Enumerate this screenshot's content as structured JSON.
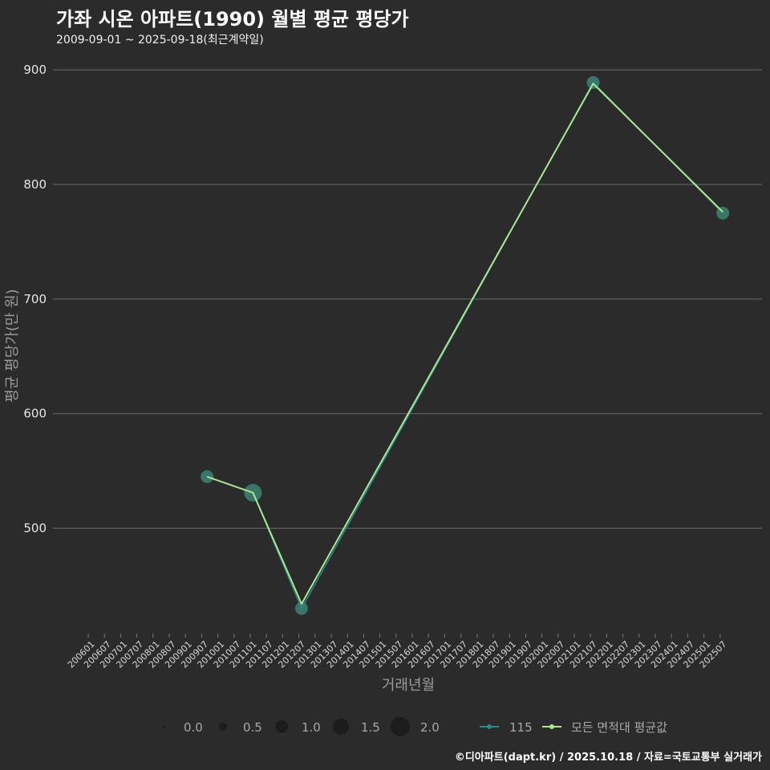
{
  "header": {
    "title": "가좌 시온 아파트(1990) 월별 평균 평당가",
    "subtitle": "2009-09-01 ~ 2025-09-18(최근계약일)"
  },
  "footer": {
    "credit": "©디아파트(dapt.kr) / 2025.10.18 / 자료=국토교통부 실거래가"
  },
  "colors": {
    "background": "#2b2b2c",
    "grid": "#6a6a6a",
    "series_115_point": "#3f8f7e",
    "series_avg_line": "#a8e890",
    "series_115_line": "#2a8a8a"
  },
  "chart_data": {
    "type": "line",
    "title": "가좌 시온 아파트(1990) 월별 평균 평당가",
    "xlabel": "거래년월",
    "ylabel": "평균 평당가(만 원)",
    "ylim": [
      408,
      912
    ],
    "yticks": [
      500,
      600,
      700,
      800,
      900
    ],
    "categories": [
      "200601",
      "200607",
      "200701",
      "200707",
      "200801",
      "200807",
      "200901",
      "200907",
      "201001",
      "201007",
      "201101",
      "201107",
      "201201",
      "201207",
      "201301",
      "201307",
      "201401",
      "201407",
      "201501",
      "201507",
      "201601",
      "201607",
      "201701",
      "201707",
      "201801",
      "201807",
      "201901",
      "201907",
      "202001",
      "202007",
      "202101",
      "202107",
      "202201",
      "202207",
      "202301",
      "202307",
      "202401",
      "202407",
      "202501",
      "202507"
    ],
    "series": [
      {
        "name": "115",
        "points": [
          {
            "x": "200909",
            "y": 545,
            "size": 1.0
          },
          {
            "x": "201102",
            "y": 531,
            "size": 2.0
          },
          {
            "x": "201208",
            "y": 430,
            "size": 1.0
          },
          {
            "x": "202108",
            "y": 889,
            "size": 1.0
          },
          {
            "x": "202508",
            "y": 775,
            "size": 1.0
          }
        ]
      },
      {
        "name": "모든 면적대 평균값",
        "points": [
          {
            "x": "200909",
            "y": 545
          },
          {
            "x": "201102",
            "y": 531
          },
          {
            "x": "201208",
            "y": 434
          },
          {
            "x": "202108",
            "y": 888
          },
          {
            "x": "202508",
            "y": 776
          }
        ]
      }
    ],
    "legend": {
      "size_title": "",
      "size_values": [
        "0.0",
        "0.5",
        "1.0",
        "1.5",
        "2.0"
      ],
      "series_labels": [
        "115",
        "모든 면적대 평균값"
      ],
      "position": "bottom"
    }
  }
}
